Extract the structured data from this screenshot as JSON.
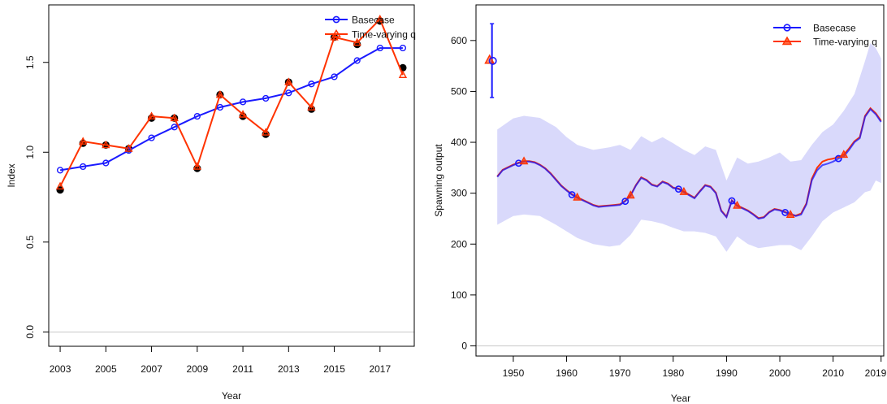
{
  "chart_data": [
    {
      "type": "line",
      "xlabel": "Year",
      "ylabel": "Index",
      "xlim": [
        2002.5,
        2018.5
      ],
      "ylim": [
        -0.08,
        1.82
      ],
      "xticks": [
        2003,
        2005,
        2007,
        2009,
        2011,
        2013,
        2015,
        2017
      ],
      "xtick_labels": [
        "2003",
        "2005",
        "2007",
        "2009",
        "2011",
        "2013",
        "2015",
        "2017"
      ],
      "yticks": [
        0.0,
        0.5,
        1.0,
        1.5
      ],
      "ytick_labels": [
        "0.0",
        "0.5",
        "1.0",
        "1.5"
      ],
      "grid": false,
      "zero_line": true,
      "legend_position": "top-right",
      "observed": {
        "x": [
          2003,
          2004,
          2005,
          2006,
          2007,
          2008,
          2009,
          2010,
          2011,
          2012,
          2013,
          2014,
          2015,
          2016,
          2017,
          2018
        ],
        "y": [
          0.79,
          1.05,
          1.04,
          1.02,
          1.19,
          1.19,
          0.91,
          1.32,
          1.2,
          1.1,
          1.39,
          1.24,
          1.64,
          1.6,
          1.73,
          1.47
        ]
      },
      "series": [
        {
          "name": "Basecase",
          "color": "#1a1aff",
          "marker": "circle",
          "x": [
            2003,
            2004,
            2005,
            2006,
            2007,
            2008,
            2009,
            2010,
            2011,
            2012,
            2013,
            2014,
            2015,
            2016,
            2017,
            2018
          ],
          "values": [
            0.9,
            0.92,
            0.94,
            1.01,
            1.08,
            1.14,
            1.2,
            1.25,
            1.28,
            1.3,
            1.33,
            1.38,
            1.42,
            1.51,
            1.58,
            1.58
          ]
        },
        {
          "name": "Time-varying q",
          "color": "#ff3300",
          "marker": "triangle",
          "x": [
            2003,
            2004,
            2005,
            2006,
            2007,
            2008,
            2009,
            2010,
            2011,
            2012,
            2013,
            2014,
            2015,
            2016,
            2017,
            2018
          ],
          "values": [
            0.81,
            1.06,
            1.04,
            1.02,
            1.2,
            1.19,
            0.92,
            1.32,
            1.21,
            1.11,
            1.39,
            1.25,
            1.64,
            1.61,
            1.74,
            1.43
          ]
        }
      ]
    },
    {
      "type": "line",
      "xlabel": "Year",
      "ylabel": "Spawning output",
      "xlim": [
        1943,
        2019.5
      ],
      "ylim": [
        -20,
        670
      ],
      "xticks": [
        1950,
        1960,
        1970,
        1980,
        1990,
        2000,
        2010,
        2019
      ],
      "xtick_labels": [
        "1950",
        "1960",
        "1970",
        "1980",
        "1990",
        "2000",
        "2010",
        "2019"
      ],
      "yticks": [
        0,
        100,
        200,
        300,
        400,
        500,
        600
      ],
      "ytick_labels": [
        "0",
        "100",
        "200",
        "300",
        "400",
        "500",
        "600"
      ],
      "grid": false,
      "zero_line": true,
      "legend_position": "top-right",
      "virgin": {
        "year": 1946,
        "basecase": 560,
        "basecase_lower": 488,
        "basecase_upper": 633,
        "time_varying": 562
      },
      "confidence_band": {
        "x": [
          1947,
          1950,
          1952,
          1955,
          1958,
          1960,
          1962,
          1965,
          1968,
          1970,
          1972,
          1974,
          1976,
          1978,
          1980,
          1982,
          1984,
          1986,
          1988,
          1990,
          1992,
          1994,
          1996,
          1998,
          2000,
          2002,
          2004,
          2006,
          2008,
          2010,
          2012,
          2014,
          2016,
          2017,
          2018,
          2019
        ],
        "upper": [
          425,
          447,
          452,
          448,
          430,
          410,
          395,
          385,
          390,
          395,
          385,
          412,
          400,
          410,
          398,
          385,
          375,
          392,
          385,
          325,
          370,
          358,
          362,
          370,
          380,
          362,
          365,
          395,
          420,
          435,
          462,
          495,
          560,
          595,
          585,
          565
        ],
        "lower": [
          238,
          255,
          258,
          255,
          238,
          225,
          212,
          200,
          195,
          198,
          218,
          248,
          245,
          240,
          232,
          225,
          225,
          222,
          215,
          185,
          215,
          200,
          192,
          195,
          198,
          198,
          188,
          215,
          245,
          262,
          272,
          282,
          302,
          305,
          325,
          320
        ]
      },
      "series": [
        {
          "name": "Basecase",
          "color": "#1a1aff",
          "marker": "circle",
          "x": [
            1947,
            1948,
            1950,
            1951,
            1952,
            1953,
            1954,
            1955,
            1956,
            1957,
            1958,
            1959,
            1960,
            1961,
            1962,
            1963,
            1964,
            1965,
            1966,
            1967,
            1968,
            1969,
            1970,
            1971,
            1972,
            1973,
            1974,
            1975,
            1976,
            1977,
            1978,
            1979,
            1980,
            1981,
            1982,
            1983,
            1984,
            1985,
            1986,
            1987,
            1988,
            1989,
            1990,
            1991,
            1992,
            1993,
            1994,
            1995,
            1996,
            1997,
            1998,
            1999,
            2000,
            2001,
            2002,
            2003,
            2004,
            2005,
            2006,
            2007,
            2008,
            2009,
            2010,
            2011,
            2012,
            2013,
            2014,
            2015,
            2016,
            2017,
            2018,
            2019
          ],
          "values": [
            332,
            345,
            355,
            359,
            362,
            362,
            360,
            355,
            348,
            338,
            326,
            314,
            305,
            297,
            291,
            286,
            281,
            276,
            273,
            274,
            275,
            276,
            277,
            284,
            295,
            315,
            330,
            325,
            316,
            313,
            322,
            318,
            310,
            308,
            302,
            296,
            290,
            303,
            315,
            312,
            300,
            265,
            253,
            285,
            275,
            270,
            265,
            258,
            250,
            252,
            262,
            268,
            266,
            262,
            260,
            255,
            258,
            278,
            325,
            345,
            355,
            358,
            362,
            368,
            372,
            385,
            400,
            408,
            450,
            465,
            455,
            440
          ],
          "markers_at": [
            1951,
            1961,
            1971,
            1981,
            1991,
            2001,
            2011
          ]
        },
        {
          "name": "Time-varying q",
          "color": "#ff3300",
          "marker": "triangle",
          "x": [
            1947,
            1948,
            1950,
            1951,
            1952,
            1953,
            1954,
            1955,
            1956,
            1957,
            1958,
            1959,
            1960,
            1961,
            1962,
            1963,
            1964,
            1965,
            1966,
            1967,
            1968,
            1969,
            1970,
            1971,
            1972,
            1973,
            1974,
            1975,
            1976,
            1977,
            1978,
            1979,
            1980,
            1981,
            1982,
            1983,
            1984,
            1985,
            1986,
            1987,
            1988,
            1989,
            1990,
            1991,
            1992,
            1993,
            1994,
            1995,
            1996,
            1997,
            1998,
            1999,
            2000,
            2001,
            2002,
            2003,
            2004,
            2005,
            2006,
            2007,
            2008,
            2009,
            2010,
            2011,
            2012,
            2013,
            2014,
            2015,
            2016,
            2017,
            2018,
            2019
          ],
          "values": [
            333,
            346,
            356,
            360,
            363,
            363,
            361,
            356,
            349,
            339,
            327,
            315,
            306,
            298,
            292,
            287,
            282,
            277,
            274,
            275,
            276,
            277,
            278,
            285,
            296,
            316,
            331,
            326,
            317,
            314,
            323,
            319,
            311,
            309,
            303,
            297,
            291,
            304,
            316,
            313,
            301,
            266,
            254,
            286,
            276,
            271,
            266,
            259,
            251,
            253,
            263,
            269,
            267,
            263,
            258,
            256,
            260,
            280,
            328,
            350,
            362,
            366,
            368,
            371,
            376,
            388,
            402,
            410,
            452,
            467,
            457,
            442
          ],
          "markers_at": [
            1952,
            1962,
            1972,
            1982,
            1992,
            2002,
            2012
          ]
        }
      ]
    }
  ]
}
